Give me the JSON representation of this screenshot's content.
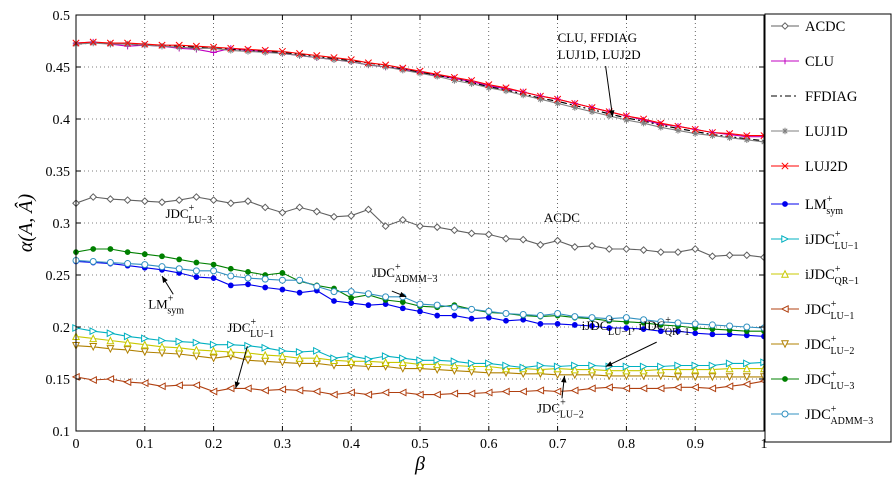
{
  "chart_data": {
    "type": "line",
    "xlabel": "β",
    "ylabel": "α(A, Â)",
    "xlim": [
      0,
      1
    ],
    "ylim": [
      0.1,
      0.5
    ],
    "x_ticks": [
      "0",
      "0.1",
      "0.2",
      "0.3",
      "0.4",
      "0.5",
      "0.6",
      "0.7",
      "0.8",
      "0.9",
      "1"
    ],
    "y_ticks": [
      "0.1",
      "0.15",
      "0.2",
      "0.25",
      "0.3",
      "0.35",
      "0.4",
      "0.45",
      "0.5"
    ],
    "grid": true,
    "legend_position": "outside-right",
    "x": [
      0,
      0.025,
      0.05,
      0.075,
      0.1,
      0.125,
      0.15,
      0.175,
      0.2,
      0.225,
      0.25,
      0.275,
      0.3,
      0.325,
      0.35,
      0.375,
      0.4,
      0.425,
      0.45,
      0.475,
      0.5,
      0.525,
      0.55,
      0.575,
      0.6,
      0.625,
      0.65,
      0.675,
      0.7,
      0.725,
      0.75,
      0.775,
      0.8,
      0.825,
      0.85,
      0.875,
      0.9,
      0.925,
      0.95,
      0.975,
      1
    ],
    "series": [
      {
        "name": "ACDC",
        "legend_main": "ACDC",
        "legend_sup": "",
        "legend_sub": "",
        "color": "#606060",
        "marker": "diamond",
        "dash": "",
        "values": [
          0.319,
          0.325,
          0.323,
          0.322,
          0.321,
          0.32,
          0.322,
          0.325,
          0.322,
          0.319,
          0.321,
          0.315,
          0.31,
          0.315,
          0.311,
          0.306,
          0.307,
          0.313,
          0.297,
          0.303,
          0.297,
          0.296,
          0.293,
          0.29,
          0.289,
          0.285,
          0.284,
          0.279,
          0.283,
          0.277,
          0.278,
          0.275,
          0.275,
          0.274,
          0.272,
          0.272,
          0.275,
          0.268,
          0.269,
          0.269,
          0.267
        ]
      },
      {
        "name": "CLU",
        "legend_main": "CLU",
        "legend_sup": "",
        "legend_sub": "",
        "color": "#c000c0",
        "marker": "plus",
        "dash": "",
        "values": [
          0.473,
          0.474,
          0.472,
          0.47,
          0.471,
          0.47,
          0.468,
          0.467,
          0.464,
          0.468,
          0.466,
          0.465,
          0.463,
          0.461,
          0.459,
          0.457,
          0.455,
          0.452,
          0.45,
          0.448,
          0.445,
          0.442,
          0.439,
          0.436,
          0.432,
          0.429,
          0.426,
          0.422,
          0.419,
          0.415,
          0.411,
          0.407,
          0.403,
          0.399,
          0.395,
          0.393,
          0.39,
          0.387,
          0.385,
          0.383,
          0.383
        ]
      },
      {
        "name": "FFDIAG",
        "legend_main": "FFDIAG",
        "legend_sup": "",
        "legend_sub": "",
        "color": "#000000",
        "marker": "none",
        "dash": "6,3,2,3",
        "values": [
          0.472,
          0.473,
          0.473,
          0.472,
          0.471,
          0.471,
          0.47,
          0.469,
          0.468,
          0.467,
          0.466,
          0.465,
          0.464,
          0.462,
          0.46,
          0.458,
          0.456,
          0.454,
          0.451,
          0.448,
          0.445,
          0.442,
          0.439,
          0.435,
          0.431,
          0.428,
          0.424,
          0.42,
          0.417,
          0.413,
          0.409,
          0.405,
          0.401,
          0.398,
          0.394,
          0.391,
          0.388,
          0.385,
          0.383,
          0.381,
          0.379
        ]
      },
      {
        "name": "LUJ1D",
        "legend_main": "LUJ1D",
        "legend_sup": "",
        "legend_sub": "",
        "color": "#7f7f7f",
        "marker": "star",
        "dash": "",
        "values": [
          0.472,
          0.473,
          0.472,
          0.472,
          0.471,
          0.47,
          0.469,
          0.468,
          0.468,
          0.466,
          0.465,
          0.464,
          0.463,
          0.461,
          0.459,
          0.457,
          0.455,
          0.452,
          0.45,
          0.447,
          0.444,
          0.441,
          0.437,
          0.434,
          0.43,
          0.427,
          0.423,
          0.419,
          0.415,
          0.411,
          0.407,
          0.403,
          0.399,
          0.396,
          0.392,
          0.389,
          0.386,
          0.384,
          0.382,
          0.38,
          0.378
        ]
      },
      {
        "name": "LUJ2D",
        "legend_main": "LUJ2D",
        "legend_sup": "",
        "legend_sub": "",
        "color": "#ff0000",
        "marker": "x",
        "dash": "",
        "values": [
          0.473,
          0.474,
          0.473,
          0.473,
          0.472,
          0.471,
          0.471,
          0.47,
          0.469,
          0.468,
          0.467,
          0.466,
          0.465,
          0.463,
          0.461,
          0.459,
          0.457,
          0.454,
          0.452,
          0.449,
          0.446,
          0.443,
          0.44,
          0.437,
          0.433,
          0.43,
          0.426,
          0.422,
          0.419,
          0.415,
          0.411,
          0.407,
          0.403,
          0.4,
          0.396,
          0.393,
          0.39,
          0.387,
          0.386,
          0.384,
          0.384
        ]
      },
      {
        "name": "LM+sym",
        "legend_main": "LM",
        "legend_sup": "+",
        "legend_sub": "sym",
        "color": "#0000ee",
        "marker": "dot",
        "dash": "",
        "values": [
          0.263,
          0.262,
          0.261,
          0.259,
          0.257,
          0.255,
          0.252,
          0.248,
          0.247,
          0.24,
          0.241,
          0.238,
          0.236,
          0.233,
          0.235,
          0.225,
          0.223,
          0.221,
          0.222,
          0.218,
          0.215,
          0.211,
          0.211,
          0.208,
          0.209,
          0.206,
          0.207,
          0.203,
          0.203,
          0.202,
          0.201,
          0.199,
          0.199,
          0.198,
          0.196,
          0.196,
          0.194,
          0.193,
          0.193,
          0.192,
          0.191
        ]
      },
      {
        "name": "iJDC+LU-1",
        "legend_main": "iJDC",
        "legend_sup": "+",
        "legend_sub": "LU−1",
        "color": "#00b0c0",
        "marker": "tri-right",
        "dash": "",
        "values": [
          0.199,
          0.196,
          0.194,
          0.191,
          0.189,
          0.187,
          0.186,
          0.185,
          0.183,
          0.183,
          0.182,
          0.18,
          0.177,
          0.176,
          0.177,
          0.17,
          0.172,
          0.169,
          0.172,
          0.17,
          0.168,
          0.168,
          0.167,
          0.165,
          0.165,
          0.163,
          0.161,
          0.163,
          0.162,
          0.163,
          0.163,
          0.162,
          0.162,
          0.162,
          0.162,
          0.163,
          0.163,
          0.163,
          0.165,
          0.165,
          0.166
        ]
      },
      {
        "name": "iJDC+QR-1",
        "legend_main": "iJDC",
        "legend_sup": "+",
        "legend_sub": "QR−1",
        "color": "#c8c800",
        "marker": "tri-up",
        "dash": "",
        "values": [
          0.191,
          0.189,
          0.187,
          0.185,
          0.183,
          0.181,
          0.18,
          0.178,
          0.177,
          0.176,
          0.175,
          0.173,
          0.172,
          0.17,
          0.17,
          0.168,
          0.167,
          0.167,
          0.166,
          0.166,
          0.164,
          0.164,
          0.163,
          0.162,
          0.162,
          0.16,
          0.16,
          0.159,
          0.16,
          0.159,
          0.159,
          0.158,
          0.158,
          0.158,
          0.159,
          0.159,
          0.159,
          0.159,
          0.16,
          0.16,
          0.16
        ]
      },
      {
        "name": "JDC+LU-1",
        "legend_main": "JDC",
        "legend_sup": "+",
        "legend_sub": "LU−1",
        "color": "#b04010",
        "marker": "tri-left",
        "dash": "",
        "values": [
          0.152,
          0.149,
          0.15,
          0.147,
          0.146,
          0.143,
          0.144,
          0.144,
          0.138,
          0.141,
          0.141,
          0.139,
          0.14,
          0.139,
          0.138,
          0.135,
          0.137,
          0.135,
          0.137,
          0.137,
          0.135,
          0.135,
          0.136,
          0.136,
          0.137,
          0.138,
          0.138,
          0.139,
          0.138,
          0.139,
          0.141,
          0.142,
          0.141,
          0.141,
          0.141,
          0.142,
          0.142,
          0.141,
          0.143,
          0.145,
          0.148
        ]
      },
      {
        "name": "JDC+LU-2",
        "legend_main": "JDC",
        "legend_sup": "+",
        "legend_sub": "LU−2",
        "color": "#b08000",
        "marker": "tri-down",
        "dash": "",
        "values": [
          0.182,
          0.181,
          0.179,
          0.178,
          0.176,
          0.175,
          0.174,
          0.172,
          0.17,
          0.172,
          0.168,
          0.167,
          0.166,
          0.165,
          0.165,
          0.163,
          0.163,
          0.162,
          0.162,
          0.16,
          0.16,
          0.159,
          0.158,
          0.157,
          0.156,
          0.156,
          0.155,
          0.155,
          0.154,
          0.154,
          0.154,
          0.153,
          0.153,
          0.153,
          0.153,
          0.152,
          0.152,
          0.152,
          0.152,
          0.152,
          0.152
        ]
      },
      {
        "name": "JDC+LU-3",
        "legend_main": "JDC",
        "legend_sup": "+",
        "legend_sub": "LU−3",
        "color": "#008000",
        "marker": "dot",
        "dash": "",
        "values": [
          0.272,
          0.275,
          0.275,
          0.272,
          0.27,
          0.268,
          0.265,
          0.262,
          0.26,
          0.256,
          0.253,
          0.25,
          0.252,
          0.244,
          0.24,
          0.237,
          0.228,
          0.231,
          0.226,
          0.224,
          0.22,
          0.219,
          0.221,
          0.217,
          0.214,
          0.213,
          0.211,
          0.21,
          0.211,
          0.209,
          0.208,
          0.206,
          0.205,
          0.204,
          0.202,
          0.201,
          0.199,
          0.198,
          0.197,
          0.196,
          0.196
        ]
      },
      {
        "name": "JDC+ADMM-3",
        "legend_main": "JDC",
        "legend_sup": "+",
        "legend_sub": "ADMM−3",
        "color": "#3090c0",
        "marker": "circle",
        "dash": "",
        "values": [
          0.264,
          0.263,
          0.262,
          0.261,
          0.26,
          0.258,
          0.256,
          0.254,
          0.254,
          0.249,
          0.247,
          0.246,
          0.245,
          0.245,
          0.239,
          0.234,
          0.234,
          0.232,
          0.229,
          0.229,
          0.222,
          0.221,
          0.219,
          0.217,
          0.215,
          0.213,
          0.212,
          0.211,
          0.213,
          0.21,
          0.209,
          0.208,
          0.209,
          0.207,
          0.205,
          0.204,
          0.203,
          0.202,
          0.201,
          0.2,
          0.199
        ]
      }
    ],
    "annotations": [
      {
        "lines": [
          "CLU, FFDIAG",
          "LUJ1D, LUJ2D"
        ],
        "x": 0.7,
        "y": 0.474,
        "arrow_to": [
          0.78,
          0.402
        ]
      },
      {
        "lines": [
          "ACDC"
        ],
        "x": 0.68,
        "y": 0.301,
        "arrow_to": null
      },
      {
        "main": "JDC",
        "sup": "+",
        "sub": "LU−3",
        "x": 0.13,
        "y": 0.305,
        "arrow_to": null
      },
      {
        "main": "JDC",
        "sup": "+",
        "sub": "ADMM−3",
        "x": 0.43,
        "y": 0.248,
        "arrow_to": [
          0.48,
          0.229
        ]
      },
      {
        "main": "LM",
        "sup": "+",
        "sub": "sym",
        "x": 0.105,
        "y": 0.218,
        "arrow_to": [
          0.125,
          0.249
        ]
      },
      {
        "main": "JDC",
        "sup": "+",
        "sub": "LU−1",
        "x": 0.22,
        "y": 0.195,
        "arrow_to": [
          0.232,
          0.141
        ]
      },
      {
        "main": "JDC",
        "sup": "+",
        "sub": "LU−2",
        "x": 0.67,
        "y": 0.118,
        "arrow_to": [
          0.71,
          0.153
        ]
      },
      {
        "text": "iJDC+LU−1, iJDC+QR−1",
        "parts": [
          {
            "main": "iJDC",
            "sup": "+",
            "sub": "LU−1"
          },
          {
            "main": ", iJDC",
            "sup": "+",
            "sub": "QR−1"
          }
        ],
        "x": 0.735,
        "y": 0.197,
        "arrow_to": [
          0.77,
          0.162
        ]
      }
    ]
  }
}
